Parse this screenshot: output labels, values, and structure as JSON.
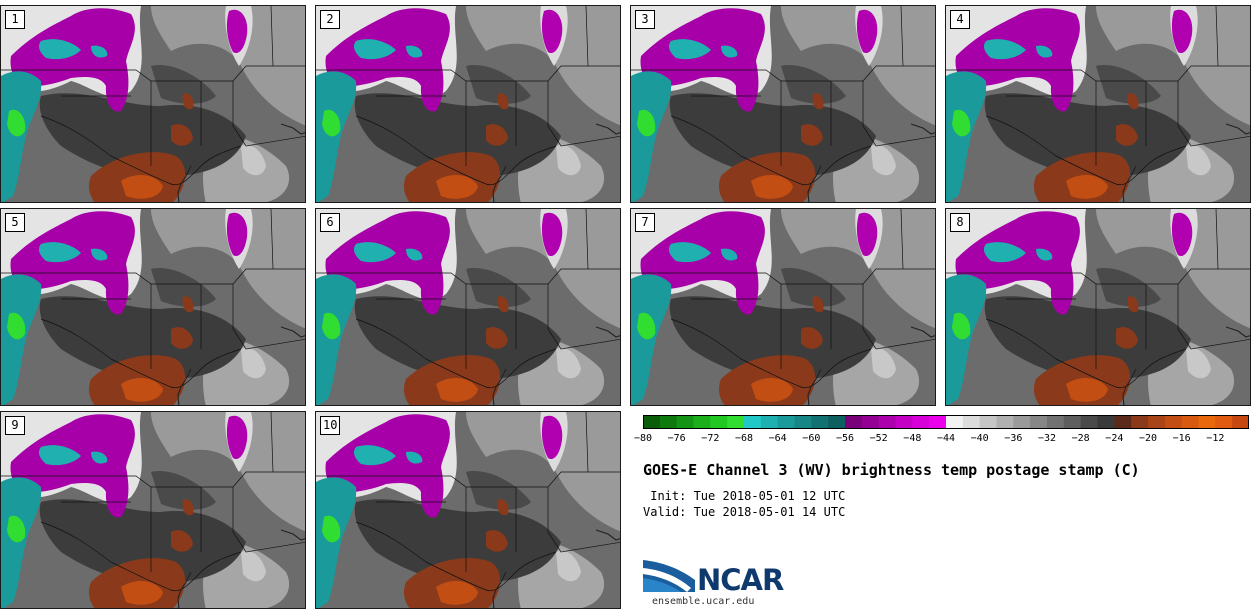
{
  "panels": [
    {
      "label": "1"
    },
    {
      "label": "2"
    },
    {
      "label": "3"
    },
    {
      "label": "4"
    },
    {
      "label": "5"
    },
    {
      "label": "6"
    },
    {
      "label": "7"
    },
    {
      "label": "8"
    },
    {
      "label": "9"
    },
    {
      "label": "10"
    }
  ],
  "colorbar": {
    "colors": [
      "#0a5e0a",
      "#0e7a0e",
      "#149414",
      "#1bb01b",
      "#22c822",
      "#30dd30",
      "#20c8c8",
      "#1eb0b0",
      "#1a9a9a",
      "#168686",
      "#127272",
      "#0e6060",
      "#7a007a",
      "#930093",
      "#ac00ac",
      "#c400c4",
      "#d800d8",
      "#ea00ea",
      "#f2f2f2",
      "#dcdcdc",
      "#c6c6c6",
      "#b0b0b0",
      "#9a9a9a",
      "#868686",
      "#727272",
      "#5e5e5e",
      "#4a4a4a",
      "#3a3a3a",
      "#5a2a1a",
      "#8a3a1a",
      "#a84418",
      "#c24e14",
      "#d85a10",
      "#ea680c",
      "#e05a10",
      "#c84812"
    ],
    "tick_labels": [
      "−80",
      "−76",
      "−72",
      "−68",
      "−64",
      "−60",
      "−56",
      "−52",
      "−48",
      "−44",
      "−40",
      "−36",
      "−32",
      "−28",
      "−24",
      "−20",
      "−16",
      "−12"
    ]
  },
  "title": "GOES-E Channel 3 (WV) brightness temp postage stamp (C)",
  "init": " Init: Tue 2018-05-01 12 UTC",
  "valid": "Valid: Tue 2018-05-01 14 UTC",
  "logo": {
    "text": "NCAR",
    "url": "ensemble.ucar.edu",
    "color": "#0f3a6e"
  }
}
